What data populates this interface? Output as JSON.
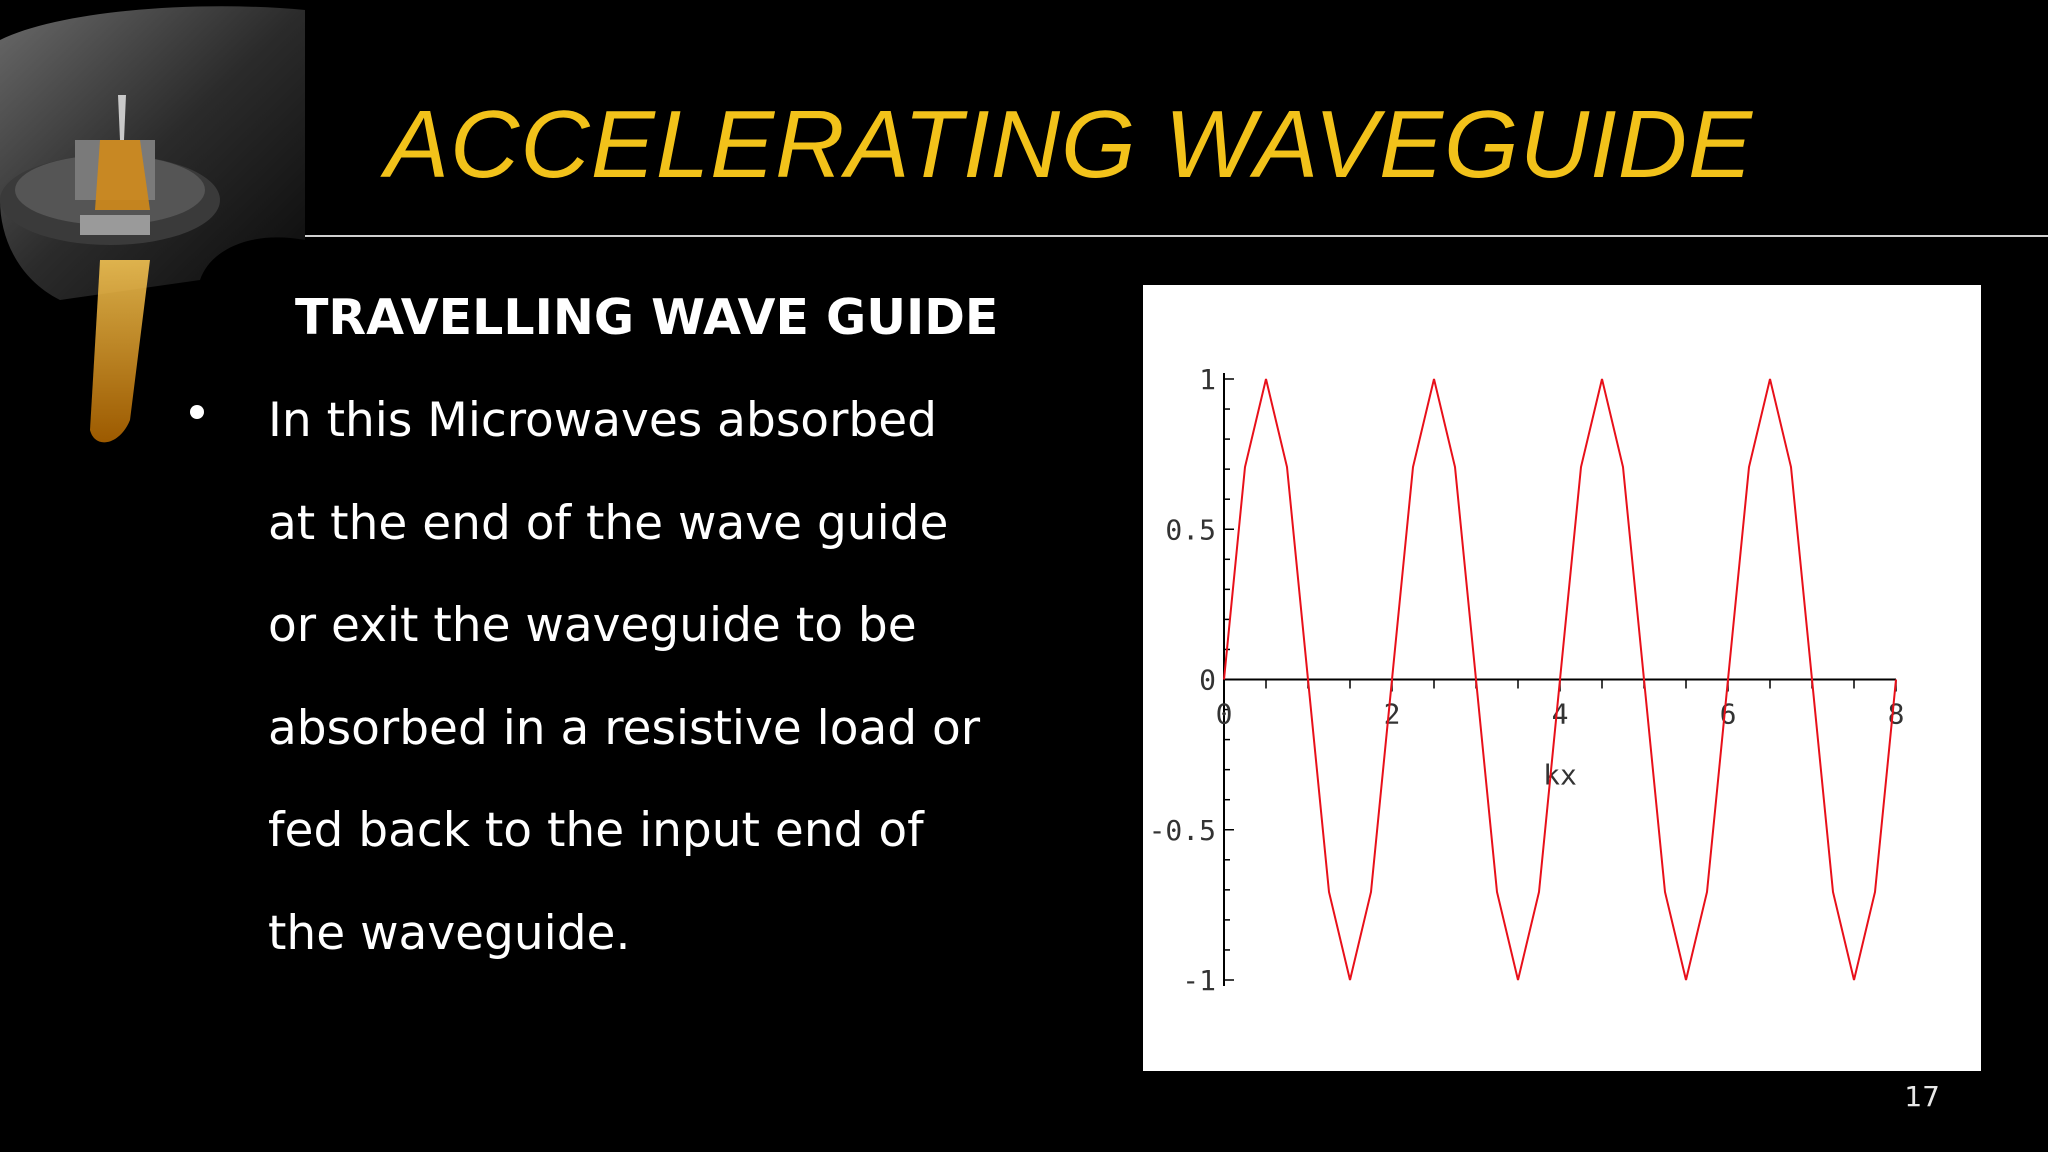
{
  "slide": {
    "title": "ACCELERATING WAVEGUIDE",
    "subheading": "TRAVELLING WAVE GUIDE",
    "bullet_lines": [
      "In this Microwaves absorbed",
      "at the end of the wave guide",
      "or exit the waveguide to be",
      "absorbed in a resistive load or",
      "fed back to the input end of",
      "the waveguide."
    ],
    "page_number": "17"
  },
  "colors": {
    "background": "#000000",
    "title": "#f2c21a",
    "text": "#ffffff",
    "curve": "#e8101a"
  },
  "chart_data": {
    "type": "line",
    "title": "",
    "xlabel": "kx",
    "ylabel": "",
    "xlim": [
      0,
      8
    ],
    "ylim": [
      -1,
      1
    ],
    "x_ticks": [
      "0",
      "2",
      "4",
      "6",
      "8"
    ],
    "y_ticks": [
      "1",
      "0.5",
      "0",
      "-0.5",
      "-1"
    ],
    "x_tick_values": [
      0,
      2,
      4,
      6,
      8
    ],
    "y_tick_values": [
      1,
      0.5,
      0,
      -0.5,
      -1
    ],
    "series": [
      {
        "x": [
          0,
          0.25,
          0.5,
          0.75,
          1,
          1.25,
          1.5,
          1.75,
          2,
          2.25,
          2.5,
          2.75,
          3,
          3.25,
          3.5,
          3.75,
          4,
          4.25,
          4.5,
          4.75,
          5,
          5.25,
          5.5,
          5.75,
          6,
          6.25,
          6.5,
          6.75,
          7,
          7.25,
          7.5,
          7.75,
          8
        ],
        "y": [
          0,
          0.707,
          1,
          0.707,
          0,
          -0.707,
          -1,
          -0.707,
          0,
          0.707,
          1,
          0.707,
          0,
          -0.707,
          -1,
          -0.707,
          0,
          0.707,
          1,
          0.707,
          0,
          -0.707,
          -1,
          -0.707,
          0,
          0.707,
          1,
          0.707,
          0,
          -0.707,
          -1,
          -0.707,
          0
        ]
      }
    ],
    "grid": false,
    "legend": "none"
  }
}
